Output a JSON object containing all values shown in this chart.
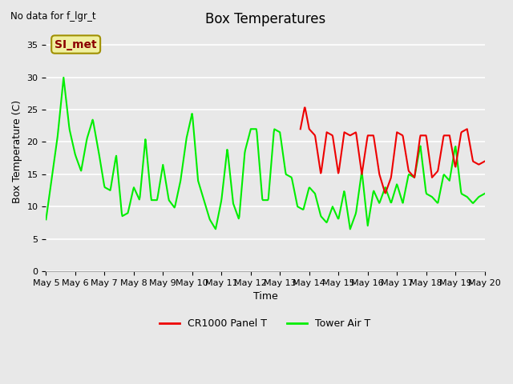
{
  "title": "Box Temperatures",
  "xlabel": "Time",
  "ylabel": "Box Temperature (C)",
  "top_left_text": "No data for f_lgr_t",
  "annotation_text": "SI_met",
  "ylim": [
    0,
    37
  ],
  "yticks": [
    0,
    5,
    10,
    15,
    20,
    25,
    30,
    35
  ],
  "xtick_labels": [
    "May 5",
    "May 6",
    "May 7",
    "May 8",
    "May 9",
    "May 10",
    "May 11",
    "May 12",
    "May 13",
    "May 14",
    "May 15",
    "May 16",
    "May 17",
    "May 18",
    "May 19",
    "May 20"
  ],
  "plot_bg_color": "#e8e8e8",
  "grid_color": "#ffffff",
  "legend_entries": [
    "CR1000 Panel T",
    "Tower Air T"
  ],
  "legend_colors": [
    "#ee0000",
    "#00ee00"
  ],
  "green_line_color": "#00ee00",
  "red_line_color": "#ee0000",
  "green_x": [
    0.0,
    0.2,
    0.4,
    0.6,
    0.8,
    1.0,
    1.2,
    1.4,
    1.6,
    1.8,
    2.0,
    2.2,
    2.4,
    2.6,
    2.8,
    3.0,
    3.2,
    3.4,
    3.6,
    3.8,
    4.0,
    4.2,
    4.4,
    4.6,
    4.8,
    5.0,
    5.2,
    5.4,
    5.6,
    5.8,
    6.0,
    6.2,
    6.4,
    6.6,
    6.8,
    7.0,
    7.2,
    7.4,
    7.6,
    7.8,
    8.0,
    8.2,
    8.4,
    8.6,
    8.8,
    9.0,
    9.2,
    9.4,
    9.6,
    9.8,
    10.0,
    10.2,
    10.4,
    10.6,
    10.8,
    11.0,
    11.2,
    11.4,
    11.6,
    11.8,
    12.0,
    12.2,
    12.4,
    12.6,
    12.8,
    13.0,
    13.2,
    13.4,
    13.6,
    13.8,
    14.0,
    14.2,
    14.4,
    14.6,
    14.8,
    15.0
  ],
  "green_y": [
    8.0,
    14.5,
    21.0,
    30.0,
    22.0,
    18.0,
    15.5,
    20.5,
    23.5,
    18.5,
    13.0,
    12.5,
    18.0,
    8.5,
    9.0,
    13.0,
    11.0,
    20.5,
    11.0,
    11.0,
    16.5,
    11.0,
    9.8,
    14.0,
    20.5,
    24.5,
    14.0,
    11.0,
    8.0,
    6.5,
    11.0,
    19.0,
    10.5,
    8.0,
    18.5,
    22.0,
    22.0,
    11.0,
    11.0,
    22.0,
    21.5,
    15.0,
    14.5,
    10.0,
    9.5,
    13.0,
    12.0,
    8.5,
    7.5,
    10.0,
    8.0,
    12.5,
    6.5,
    9.0,
    15.5,
    7.0,
    12.5,
    10.5,
    13.0,
    10.5,
    13.5,
    10.5,
    15.0,
    14.5,
    19.5,
    12.0,
    11.5,
    10.5,
    15.0,
    14.0,
    19.5,
    12.0,
    11.5,
    10.5,
    11.5,
    12.0
  ],
  "red_x": [
    8.7,
    8.85,
    9.0,
    9.2,
    9.4,
    9.6,
    9.8,
    10.0,
    10.2,
    10.4,
    10.6,
    10.8,
    11.0,
    11.2,
    11.4,
    11.6,
    11.8,
    12.0,
    12.2,
    12.4,
    12.6,
    12.8,
    13.0,
    13.2,
    13.4,
    13.6,
    13.8,
    14.0,
    14.2,
    14.4,
    14.6,
    14.8,
    15.0
  ],
  "red_y": [
    22.0,
    25.5,
    22.0,
    21.0,
    15.0,
    21.5,
    21.0,
    15.0,
    21.5,
    21.0,
    21.5,
    15.0,
    21.0,
    21.0,
    15.0,
    12.0,
    14.5,
    21.5,
    21.0,
    15.5,
    14.5,
    21.0,
    21.0,
    14.5,
    15.5,
    21.0,
    21.0,
    16.0,
    21.5,
    22.0,
    17.0,
    16.5,
    17.0
  ]
}
